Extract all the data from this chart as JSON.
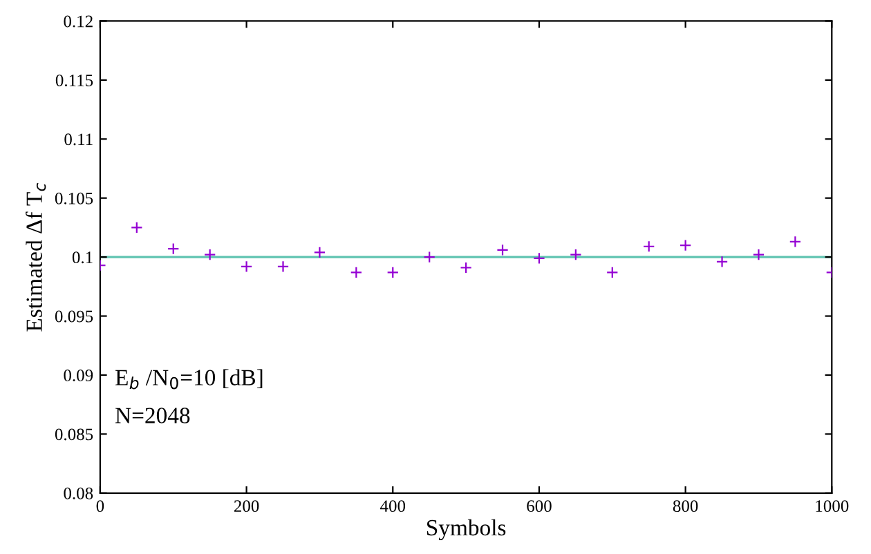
{
  "chart_data": {
    "type": "scatter",
    "xlabel": "Symbols",
    "ylabel": "Estimated Δf T$_{c}$",
    "x": [
      0,
      50,
      100,
      150,
      200,
      250,
      300,
      350,
      400,
      450,
      500,
      550,
      600,
      650,
      700,
      750,
      800,
      850,
      900,
      950,
      1000
    ],
    "series": [
      {
        "color": "#9400d3",
        "values": [
          0.0993,
          0.1025,
          0.1007,
          0.1002,
          0.0992,
          0.0992,
          0.1004,
          0.0987,
          0.0987,
          0.1,
          0.0991,
          0.1006,
          0.0999,
          0.1002,
          0.0987,
          0.1009,
          0.101,
          0.0996,
          0.1002,
          0.1013,
          0.0987
        ]
      }
    ],
    "marker": "cross",
    "ref_lines": [
      {
        "axis": "y",
        "value": 0.1,
        "color": "#5fc4b0"
      }
    ],
    "annotations": [
      "E$_{b}$ /N$_{0}$=10 [dB]",
      "N=2048"
    ],
    "xlim": [
      0,
      1000
    ],
    "xticks": [
      0,
      200,
      400,
      600,
      800,
      1000
    ],
    "ylim": [
      0.08,
      0.12
    ],
    "yticks": [
      0.08,
      0.085,
      0.09,
      0.095,
      0.1,
      0.105,
      0.11,
      0.115,
      0.12
    ],
    "grid": false,
    "legend": false
  }
}
